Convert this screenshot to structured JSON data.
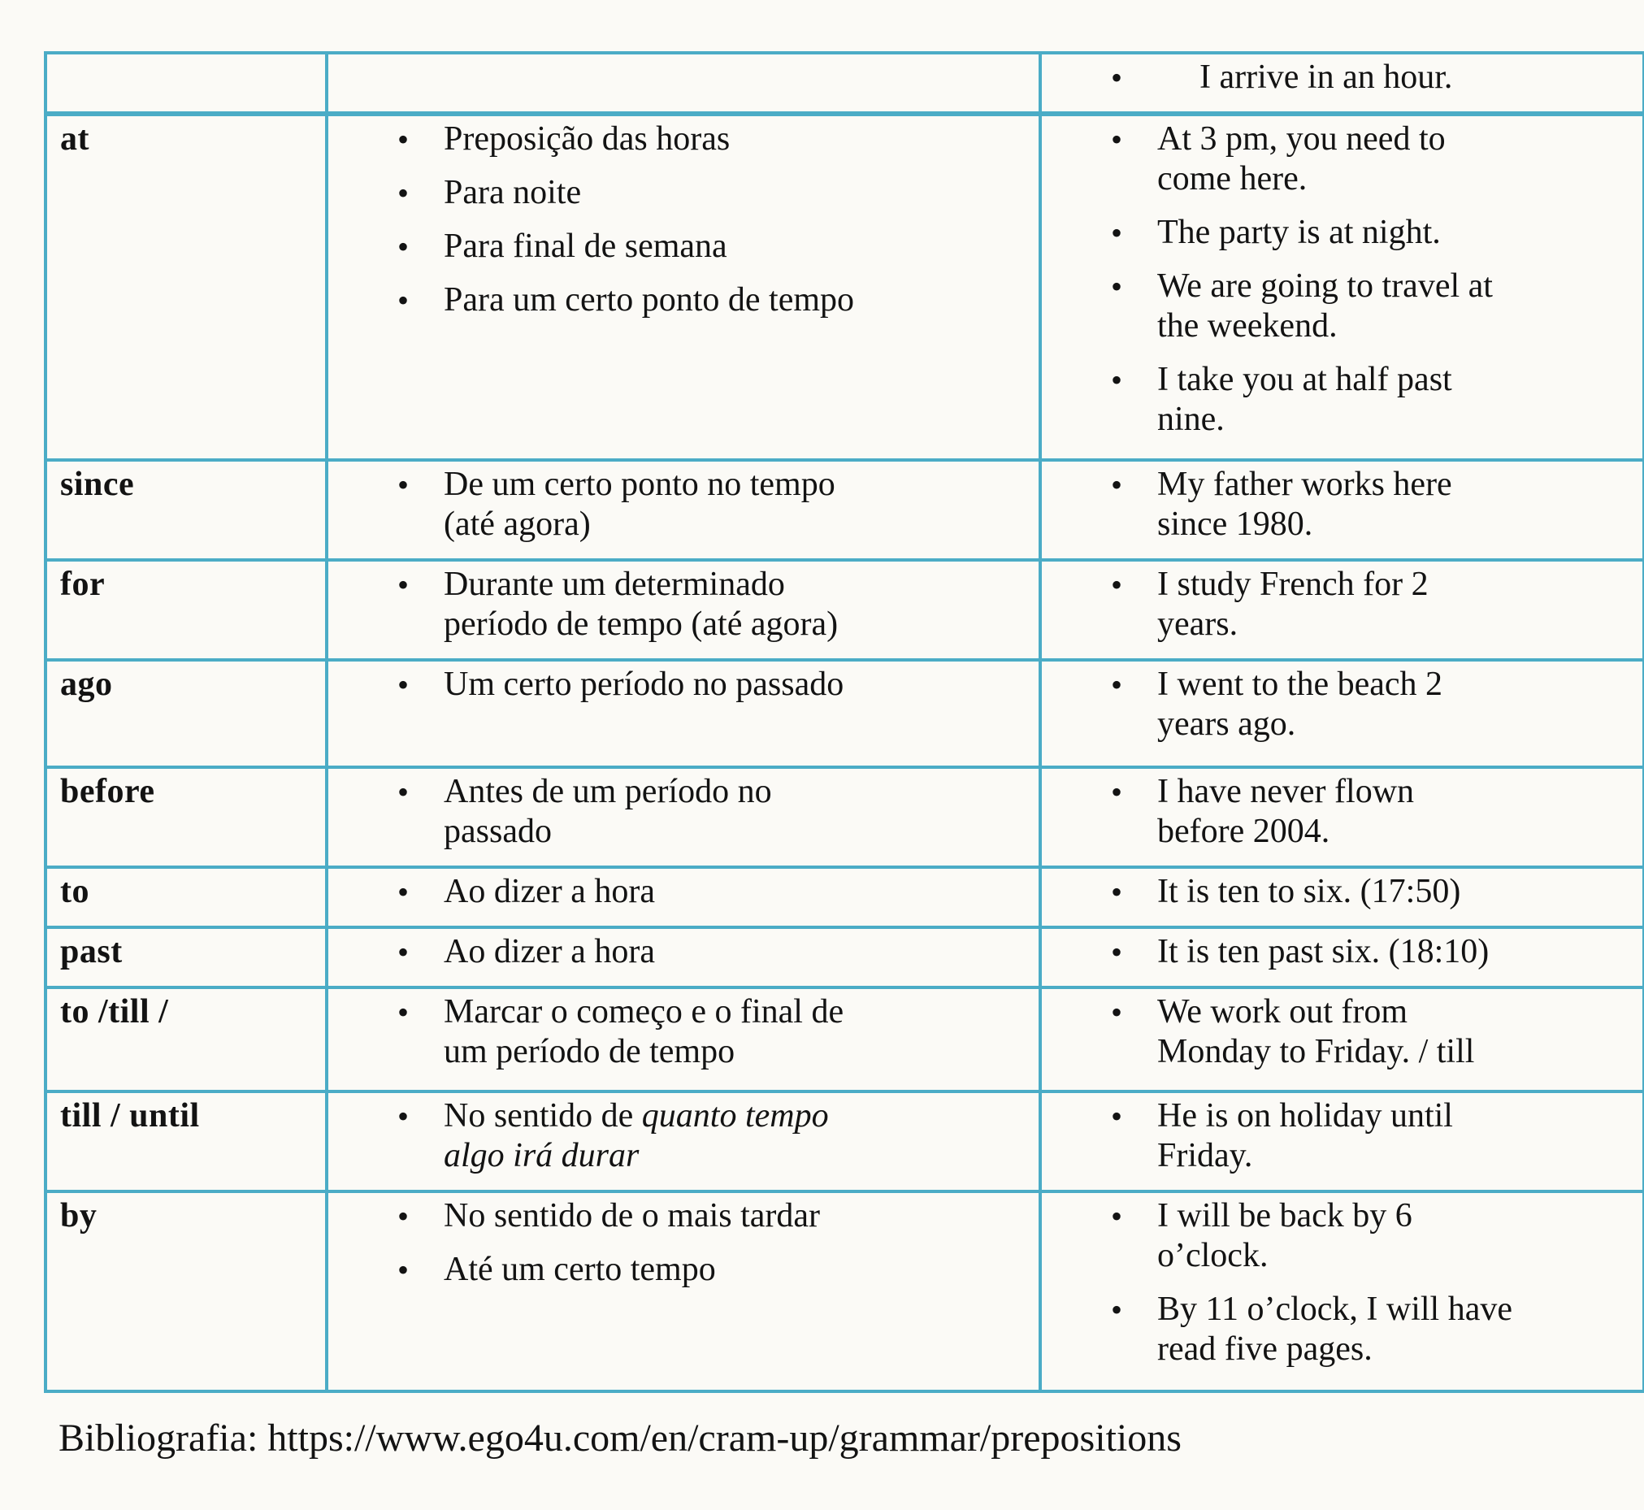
{
  "document": {
    "colors": {
      "table_border": "#4bacc6",
      "text": "#131313",
      "background": "#fbfaf6"
    },
    "footer": "Bibliografia: https://www.ego4u.com/en/cram-up/grammar/prepositions",
    "table": {
      "rows": [
        {
          "preposition": "",
          "meanings": [],
          "examples": [
            [
              {
                "text": "I arrive in an hour."
              }
            ]
          ]
        },
        {
          "preposition": "at",
          "meanings": [
            [
              {
                "text": "Preposição das horas"
              }
            ],
            [
              {
                "text": "Para noite"
              }
            ],
            [
              {
                "text": "Para final de semana"
              }
            ],
            [
              {
                "text": "Para um certo ponto de tempo"
              }
            ]
          ],
          "examples": [
            [
              {
                "text": "At 3 pm, you need to\ncome here."
              }
            ],
            [
              {
                "text": "The party is at night."
              }
            ],
            [
              {
                "text": "We are going to travel at\nthe weekend."
              }
            ],
            [
              {
                "text": "I take you at half past\nnine."
              }
            ]
          ]
        },
        {
          "preposition": "since",
          "meanings": [
            [
              {
                "text": "De um certo ponto no tempo\n(até agora)"
              }
            ]
          ],
          "examples": [
            [
              {
                "text": "My father works here\nsince 1980."
              }
            ]
          ]
        },
        {
          "preposition": "for",
          "meanings": [
            [
              {
                "text": "Durante um determinado\nperíodo de tempo (até agora)"
              }
            ]
          ],
          "examples": [
            [
              {
                "text": "I study French for 2\nyears."
              }
            ]
          ]
        },
        {
          "preposition": "ago",
          "meanings": [
            [
              {
                "text": "Um certo período no passado"
              }
            ]
          ],
          "examples": [
            [
              {
                "text": "I went to the beach 2\nyears ago."
              }
            ]
          ]
        },
        {
          "preposition": "before",
          "meanings": [
            [
              {
                "text": "Antes de um período no\npassado"
              }
            ]
          ],
          "examples": [
            [
              {
                "text": "I have never flown\nbefore 2004."
              }
            ]
          ]
        },
        {
          "preposition": "to",
          "meanings": [
            [
              {
                "text": "Ao dizer a hora"
              }
            ]
          ],
          "examples": [
            [
              {
                "text": "It is ten to six. (17:50)"
              }
            ]
          ]
        },
        {
          "preposition": "past",
          "meanings": [
            [
              {
                "text": "Ao dizer a hora"
              }
            ]
          ],
          "examples": [
            [
              {
                "text": "It is ten past six. (18:10)"
              }
            ]
          ]
        },
        {
          "preposition": "to /till /",
          "meanings": [
            [
              {
                "text": "Marcar o começo e o final de\num período de tempo"
              }
            ]
          ],
          "examples": [
            [
              {
                "text": "We work out from\nMonday to Friday. / till"
              }
            ]
          ]
        },
        {
          "preposition": "till / until",
          "meanings": [
            [
              {
                "text": "No sentido de "
              },
              {
                "text": "quanto tempo\nalgo irá durar",
                "italic": true
              }
            ]
          ],
          "examples": [
            [
              {
                "text": "He is on holiday until\nFriday."
              }
            ]
          ]
        },
        {
          "preposition": "by",
          "meanings": [
            [
              {
                "text": "No sentido de o mais tardar"
              }
            ],
            [
              {
                "text": "Até um certo tempo"
              }
            ]
          ],
          "examples": [
            [
              {
                "text": "I will be back by 6\no’clock."
              }
            ],
            [
              {
                "text": "By 11 o’clock, I will have\nread five pages."
              }
            ]
          ]
        }
      ]
    }
  }
}
